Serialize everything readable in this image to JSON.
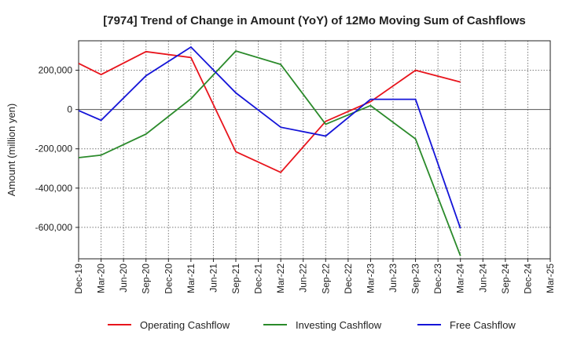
{
  "chart_data": {
    "type": "line",
    "title": "[7974]  Trend of Change in Amount (YoY) of 12Mo Moving Sum of Cashflows",
    "xlabel": "",
    "ylabel": "Amount (million yen)",
    "ylim": [
      -760000,
      350000
    ],
    "yticks": [
      200000,
      0,
      -200000,
      -400000,
      -600000
    ],
    "ytick_labels": [
      "200,000",
      "0",
      "-200,000",
      "-400,000",
      "-600,000"
    ],
    "categories": [
      "Dec-19",
      "Mar-20",
      "Jun-20",
      "Sep-20",
      "Dec-20",
      "Mar-21",
      "Jun-21",
      "Sep-21",
      "Dec-21",
      "Mar-22",
      "Jun-22",
      "Sep-22",
      "Dec-22",
      "Mar-23",
      "Jun-23",
      "Sep-23",
      "Dec-23",
      "Mar-24",
      "Jun-24",
      "Sep-24",
      "Dec-24",
      "Mar-25"
    ],
    "series": [
      {
        "name": "Operating Cashflow",
        "color": "#e8141c",
        "values": [
          235000,
          178000,
          null,
          295000,
          null,
          265000,
          null,
          -215000,
          null,
          -320000,
          null,
          -60000,
          null,
          40000,
          null,
          200000,
          null,
          140000,
          null,
          null,
          null,
          null
        ]
      },
      {
        "name": "Investing Cashflow",
        "color": "#2a8a2a",
        "values": [
          -245000,
          -232000,
          null,
          -125000,
          null,
          55000,
          null,
          298000,
          null,
          230000,
          null,
          -75000,
          null,
          20000,
          null,
          -150000,
          null,
          -745000,
          null,
          null,
          null,
          null
        ]
      },
      {
        "name": "Free Cashflow",
        "color": "#1414d8",
        "values": [
          -5000,
          -55000,
          null,
          172000,
          null,
          318000,
          null,
          85000,
          null,
          -90000,
          null,
          -135000,
          null,
          52000,
          null,
          52000,
          null,
          -605000,
          null,
          null,
          null,
          null
        ]
      }
    ],
    "legend": "bottom",
    "grid": true
  }
}
